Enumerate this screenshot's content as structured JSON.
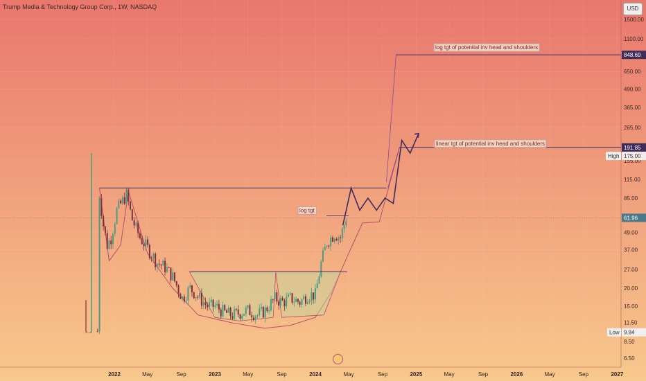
{
  "header": {
    "title": "Trump Media & Technology Group Corp., 1W, NASDAQ",
    "currency_button": "USD"
  },
  "colors": {
    "bg_top": "#e9776d",
    "bg_bottom": "#f8c88c",
    "line": "#3f2b5a",
    "pattern_stroke": "#b84e6a",
    "cup_fill": "#c9d39a",
    "candle_up": "#4e9a80",
    "candle_down": "#7a3040",
    "label_bg": "#f0e4c8",
    "label_text": "#8b1e3f",
    "price_tag_bg": "#3f2b5a",
    "price_tag_text": "#ffffff"
  },
  "chart_data": {
    "type": "candlestick",
    "title": "Trump Media & Technology Group Corp., 1W, NASDAQ",
    "y_scale": "log",
    "currency": "USD",
    "y_ticks": [
      1500.0,
      1100.0,
      650.0,
      490.0,
      365.0,
      265.0,
      155.0,
      115.0,
      85.0,
      49.0,
      37.0,
      27.0,
      20.0,
      15.0,
      11.5,
      8.5,
      6.5
    ],
    "x_ticks": [
      "2022",
      "May",
      "Sep",
      "2023",
      "May",
      "Sep",
      "2024",
      "May",
      "Sep",
      "2025",
      "May",
      "Sep",
      "2026",
      "May",
      "Sep",
      "2027"
    ],
    "x_ticks_dates": [
      "2022-01",
      "2022-05",
      "2022-09",
      "2023-01",
      "2023-05",
      "2023-09",
      "2024-01",
      "2024-05",
      "2024-09",
      "2025-01",
      "2025-05",
      "2025-09",
      "2026-01",
      "2026-05",
      "2026-09",
      "2027-01"
    ],
    "price_tags": {
      "log_target": "848.69",
      "linear_target": "191.85",
      "high": "175.00",
      "high_label": "High",
      "last": "61.96",
      "low": "9.84",
      "low_label": "Low"
    },
    "annotations": [
      {
        "text": "log tgt of potential inv head and shoulders",
        "price": 848.69
      },
      {
        "text": "linear tgt of potential inv head and shoulders",
        "price": 191.85
      },
      {
        "text": "log tgt",
        "price": 64
      }
    ],
    "weekly_close_approx": [
      {
        "date": "2021-11-01",
        "price": 10
      },
      {
        "date": "2021-11-08",
        "price": 90
      },
      {
        "date": "2021-11-22",
        "price": 55
      },
      {
        "date": "2021-12-06",
        "price": 40
      },
      {
        "date": "2021-12-20",
        "price": 45
      },
      {
        "date": "2022-01-10",
        "price": 70
      },
      {
        "date": "2022-02-14",
        "price": 90
      },
      {
        "date": "2022-03-07",
        "price": 60
      },
      {
        "date": "2022-04-04",
        "price": 45
      },
      {
        "date": "2022-05-02",
        "price": 38
      },
      {
        "date": "2022-06-06",
        "price": 30
      },
      {
        "date": "2022-07-04",
        "price": 28
      },
      {
        "date": "2022-08-01",
        "price": 24
      },
      {
        "date": "2022-09-05",
        "price": 17
      },
      {
        "date": "2022-10-03",
        "price": 20
      },
      {
        "date": "2022-11-07",
        "price": 17
      },
      {
        "date": "2022-12-05",
        "price": 15
      },
      {
        "date": "2023-01-02",
        "price": 15
      },
      {
        "date": "2023-02-06",
        "price": 13.5
      },
      {
        "date": "2023-03-06",
        "price": 13
      },
      {
        "date": "2023-04-03",
        "price": 13.5
      },
      {
        "date": "2023-05-01",
        "price": 14
      },
      {
        "date": "2023-06-05",
        "price": 13
      },
      {
        "date": "2023-07-03",
        "price": 14
      },
      {
        "date": "2023-08-07",
        "price": 17
      },
      {
        "date": "2023-09-04",
        "price": 16
      },
      {
        "date": "2023-10-02",
        "price": 17
      },
      {
        "date": "2023-11-06",
        "price": 16
      },
      {
        "date": "2023-12-04",
        "price": 18
      },
      {
        "date": "2024-01-01",
        "price": 18
      },
      {
        "date": "2024-01-22",
        "price": 30
      },
      {
        "date": "2024-02-12",
        "price": 42
      },
      {
        "date": "2024-03-11",
        "price": 48
      },
      {
        "date": "2024-04-01",
        "price": 45
      },
      {
        "date": "2024-04-22",
        "price": 61.96
      }
    ],
    "drawings": {
      "resistance_line": {
        "from": "2021-11",
        "to": "2024-09",
        "price": 100
      },
      "cup_neckline": {
        "from": "2022-10",
        "to": "2024-04",
        "price": 26
      },
      "projected_path": [
        {
          "date": "2024-04",
          "price": 55
        },
        {
          "date": "2024-05",
          "price": 100
        },
        {
          "date": "2024-06",
          "price": 70
        },
        {
          "date": "2024-07",
          "price": 85
        },
        {
          "date": "2024-08",
          "price": 70
        },
        {
          "date": "2024-09",
          "price": 85
        },
        {
          "date": "2024-10",
          "price": 78
        },
        {
          "date": "2024-11",
          "price": 215
        },
        {
          "date": "2024-12",
          "price": 175
        },
        {
          "date": "2025-01",
          "price": 240
        }
      ]
    }
  }
}
